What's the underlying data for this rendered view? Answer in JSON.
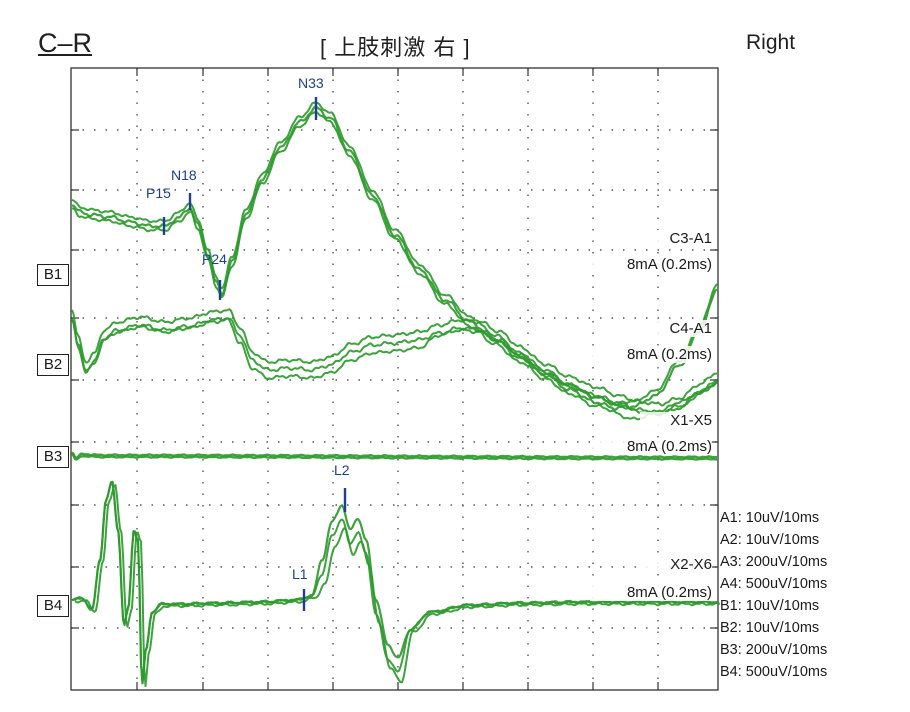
{
  "header": {
    "left": "C–R",
    "center": "[ 上肢刺激  右      ]",
    "right": "Right"
  },
  "chart_data": {
    "type": "line",
    "trace_color": "#2e9a2e",
    "marker_color": "#1d3f8f",
    "grid": "dotted",
    "channels": [
      {
        "id": "B1",
        "label": "B1",
        "derivation": "C3-A1",
        "stim": "8mA (0.2ms)"
      },
      {
        "id": "B2",
        "label": "B2",
        "derivation": "C4-A1",
        "stim": "8mA (0.2ms)"
      },
      {
        "id": "B3",
        "label": "B3",
        "derivation": "X1-X5",
        "stim": "8mA (0.2ms)"
      },
      {
        "id": "B4",
        "label": "B4",
        "derivation": "X2-X6",
        "stim": "8mA (0.2ms)"
      }
    ],
    "peaks": [
      {
        "name": "P15",
        "channel": "B1"
      },
      {
        "name": "N18",
        "channel": "B1"
      },
      {
        "name": "P24",
        "channel": "B1"
      },
      {
        "name": "N33",
        "channel": "B1"
      },
      {
        "name": "L1",
        "channel": "B4"
      },
      {
        "name": "L2",
        "channel": "B4"
      }
    ],
    "scales": [
      "A1: 10uV/10ms",
      "A2: 10uV/10ms",
      "A3: 200uV/10ms",
      "A4: 500uV/10ms",
      "B1: 10uV/10ms",
      "B2: 10uV/10ms",
      "B3: 200uV/10ms",
      "B4: 500uV/10ms"
    ]
  }
}
